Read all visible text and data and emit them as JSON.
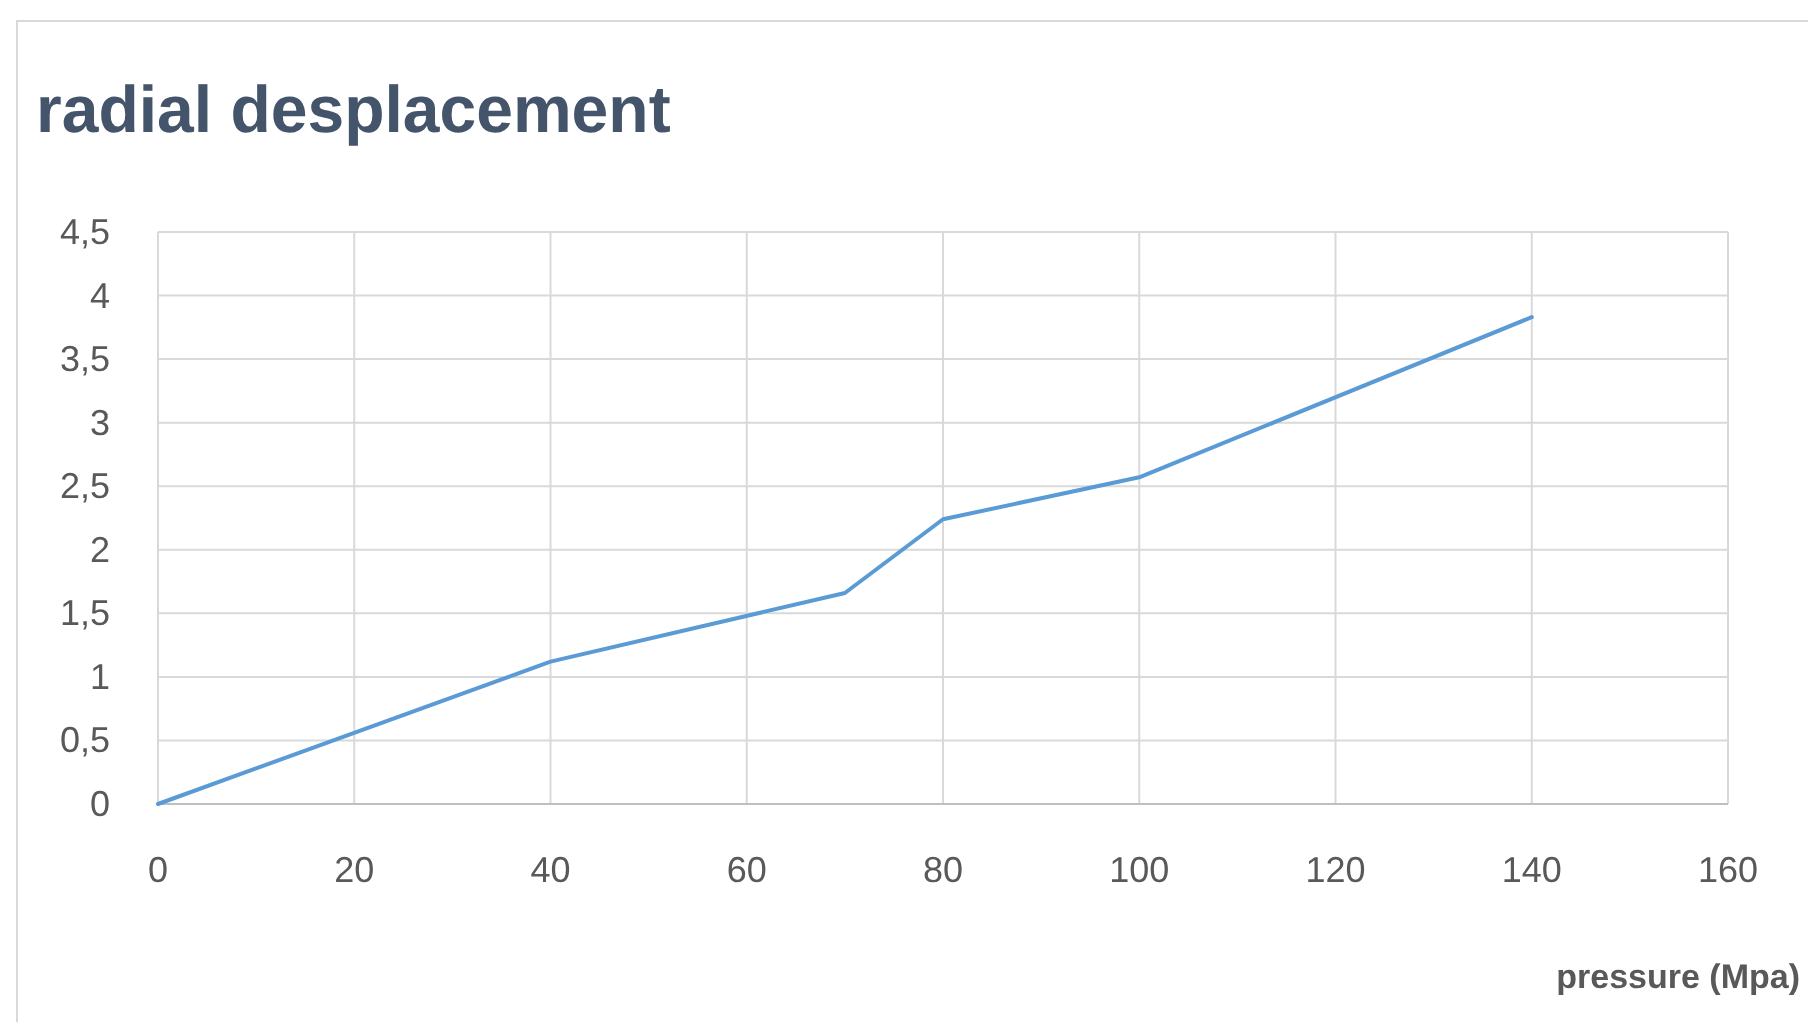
{
  "chart_data": {
    "type": "line",
    "title": "radial desplacement",
    "xlabel": "pressure (Mpa)",
    "x": [
      0,
      40,
      70,
      80,
      100,
      140
    ],
    "series": [
      {
        "color": "#5b9bd5",
        "values": [
          0,
          1.12,
          1.66,
          2.24,
          2.57,
          3.83
        ]
      }
    ],
    "xlim": [
      0,
      160
    ],
    "xticks": [
      0,
      20,
      40,
      60,
      80,
      100,
      120,
      140,
      160
    ],
    "ylim": [
      0,
      4.5
    ],
    "yticks": [
      0,
      {
        "value": 0.5,
        "label": "0,5"
      },
      1,
      {
        "value": 1.5,
        "label": "1,5"
      },
      2,
      {
        "value": 2.5,
        "label": "2,5"
      },
      3,
      {
        "value": 3.5,
        "label": "3,5"
      },
      4,
      {
        "value": 4.5,
        "label": "4,5"
      }
    ],
    "grid": true,
    "marker": "none",
    "line_style": "solid"
  }
}
